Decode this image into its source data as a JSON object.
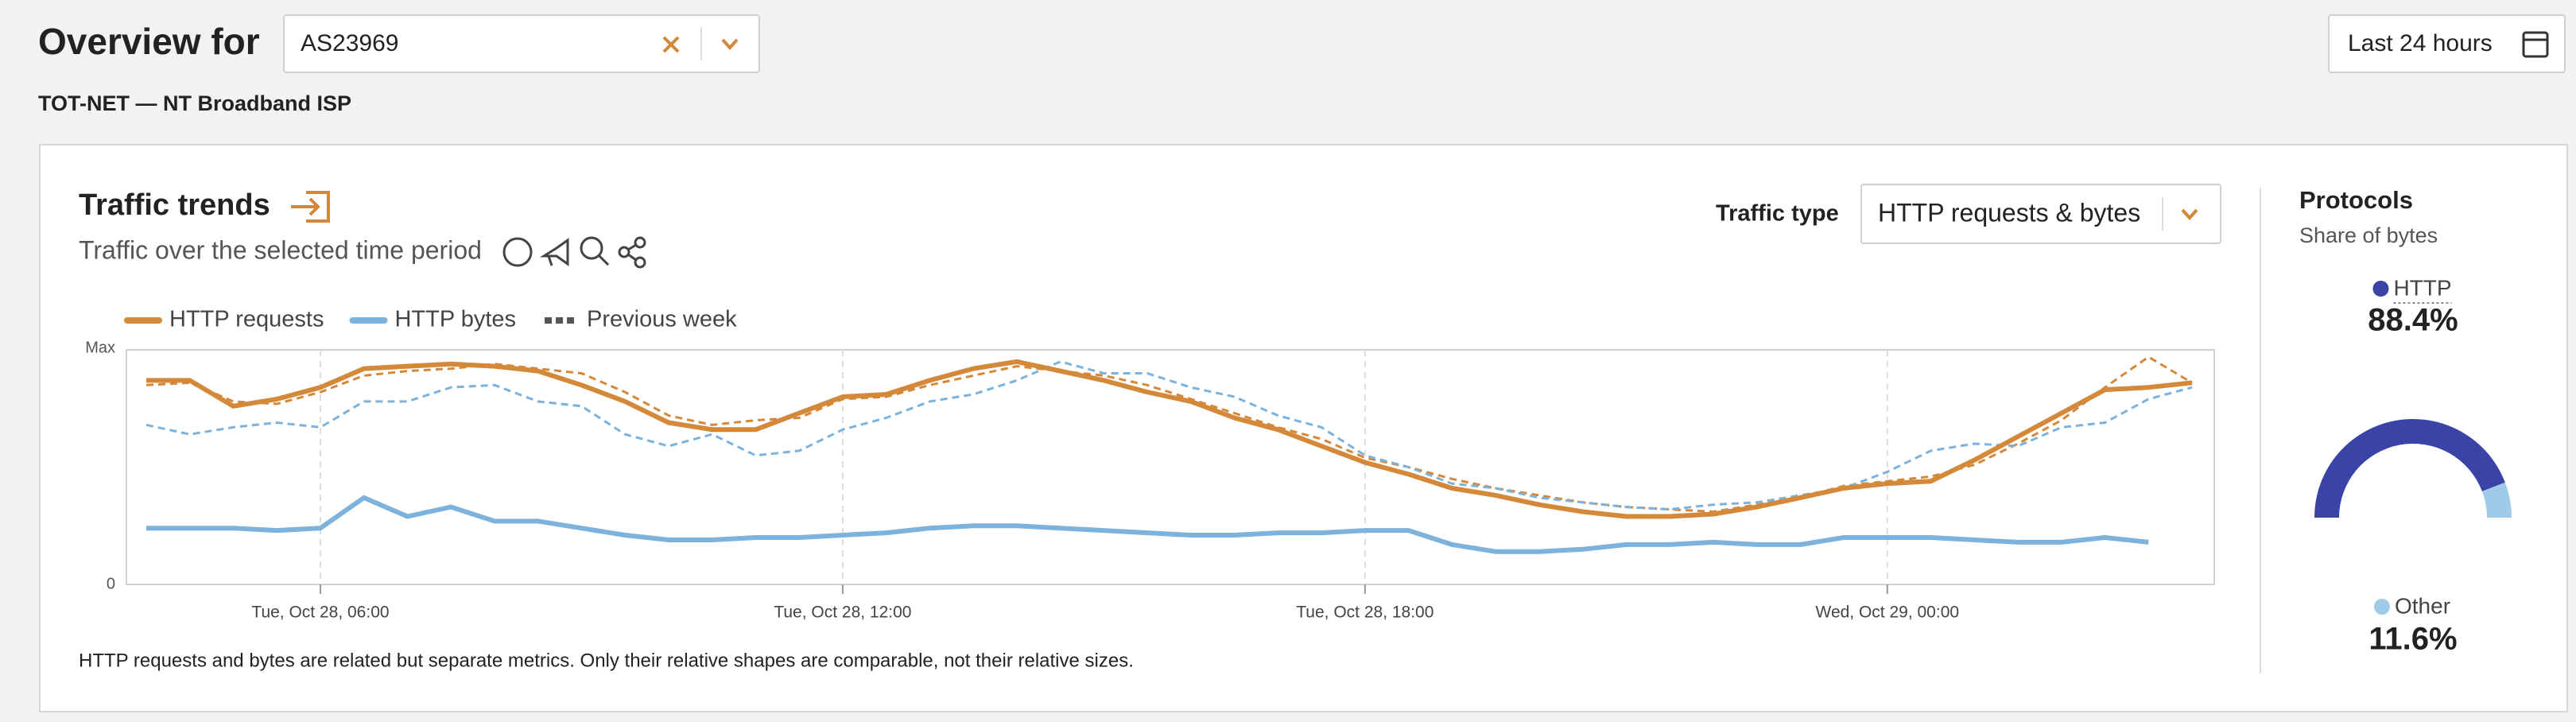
{
  "header": {
    "title": "Overview for",
    "asn": "AS23969",
    "time_range": "Last 24 hours",
    "network_name": "TOT-NET — NT Broadband ISP"
  },
  "controls": {
    "traffic_type_label": "Traffic type",
    "traffic_type": "HTTP requests & bytes"
  },
  "chart_data": [
    {
      "type": "line",
      "title": "Traffic trends",
      "subtitle": "Traffic over the selected time period",
      "note": "HTTP requests and bytes are related but separate metrics. Only their relative shapes are comparable, not their relative sizes.",
      "categories": [
        null,
        null,
        null,
        null,
        "Tue, Oct 28, 06:00",
        null,
        null,
        null,
        null,
        null,
        null,
        null,
        null,
        null,
        null,
        null,
        "Tue, Oct 28, 12:00",
        null,
        null,
        null,
        null,
        null,
        null,
        null,
        null,
        null,
        null,
        null,
        "Tue, Oct 28, 18:00",
        null,
        null,
        null,
        null,
        null,
        null,
        null,
        null,
        null,
        null,
        null,
        "Wed, Oct 29, 00:00",
        null,
        null,
        null,
        null,
        null,
        null,
        null
      ],
      "ylim": [
        0,
        100
      ],
      "yticks": [
        0,
        {
          "value": 100,
          "label": "Max"
        }
      ],
      "series": [
        {
          "name": "HTTP requests",
          "color": "#d4883a",
          "values": [
            87,
            87,
            76,
            79,
            84,
            92,
            93,
            94,
            93,
            91,
            85,
            78,
            69,
            66,
            66,
            73,
            80,
            81,
            87,
            92,
            95,
            91,
            87,
            82,
            78,
            71,
            66,
            59,
            52,
            47,
            41,
            38,
            34,
            31,
            29,
            29,
            30,
            33,
            37,
            41,
            43,
            44,
            53,
            63,
            73,
            83,
            84,
            86
          ]
        },
        {
          "name": "HTTP bytes",
          "color": "#7cb2db",
          "values": [
            24,
            24,
            24,
            23,
            24,
            37,
            29,
            33,
            27,
            27,
            24,
            21,
            19,
            19,
            20,
            20,
            21,
            22,
            24,
            25,
            25,
            24,
            23,
            22,
            21,
            21,
            22,
            22,
            23,
            23,
            17,
            14,
            14,
            15,
            17,
            17,
            18,
            17,
            17,
            20,
            20,
            20,
            19,
            18,
            18,
            20,
            18,
            null
          ]
        }
      ],
      "previous_week": {
        "name": "Previous week",
        "color": "#555555",
        "series": [
          {
            "color": "#d4883a",
            "values": [
              85,
              86,
              78,
              77,
              82,
              89,
              91,
              92,
              94,
              92,
              90,
              82,
              72,
              68,
              70,
              71,
              79,
              80,
              85,
              89,
              93,
              91,
              89,
              85,
              79,
              73,
              67,
              62,
              54,
              50,
              45,
              41,
              38,
              35,
              33,
              32,
              31,
              34,
              37,
              42,
              44,
              46,
              51,
              60,
              70,
              84,
              97,
              86
            ]
          },
          {
            "color": "#7cb2db",
            "values": [
              68,
              64,
              67,
              69,
              67,
              78,
              78,
              84,
              85,
              78,
              76,
              64,
              59,
              64,
              55,
              57,
              66,
              71,
              78,
              81,
              87,
              95,
              90,
              90,
              84,
              80,
              72,
              67,
              55,
              50,
              43,
              41,
              37,
              35,
              33,
              32,
              34,
              35,
              38,
              41,
              48,
              57,
              60,
              59,
              67,
              69,
              79,
              84
            ]
          }
        ]
      }
    },
    {
      "type": "gauge",
      "title": "Protocols",
      "subtitle": "Share of bytes",
      "categories": [
        "HTTP",
        "Other"
      ],
      "values": [
        88.4,
        11.6
      ],
      "value_labels": [
        "88.4%",
        "11.6%"
      ],
      "colors": [
        "#3a44a6",
        "#9fcbe8"
      ]
    }
  ]
}
